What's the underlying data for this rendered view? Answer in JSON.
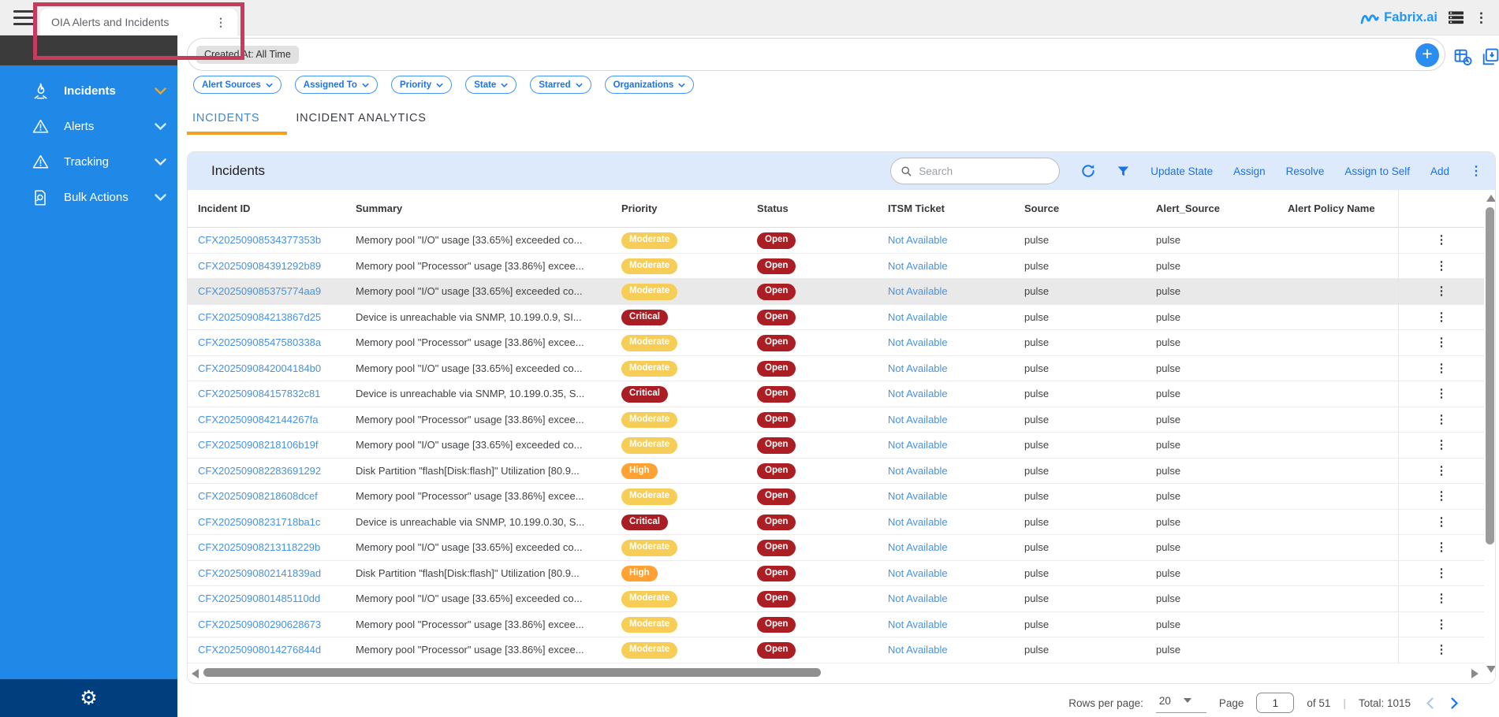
{
  "topbar": {
    "tab_title": "OIA Alerts and Incidents",
    "brand": "Fabrix.ai",
    "icons": [
      "hamburger-menu-icon",
      "kebab-menu-icon",
      "brand-wave-icon",
      "app-list-icon"
    ]
  },
  "sidebar": {
    "items": [
      {
        "label": "Incidents",
        "icon": "flame-icon",
        "active": true
      },
      {
        "label": "Alerts",
        "icon": "warning-triangle-icon",
        "active": false
      },
      {
        "label": "Tracking",
        "icon": "warning-triangle-icon",
        "active": false
      },
      {
        "label": "Bulk Actions",
        "icon": "document-search-icon",
        "active": false
      }
    ],
    "footer_icon": "gear-icon"
  },
  "filter_bar": {
    "created_at_chip": "Created At: All Time",
    "filter_chips": [
      "Alert Sources",
      "Assigned To",
      "Priority",
      "State",
      "Starred",
      "Organizations"
    ],
    "add_button": "+",
    "icons": [
      "table-clock-icon",
      "save-view-icon"
    ]
  },
  "tabs": [
    {
      "label": "INCIDENTS",
      "active": true
    },
    {
      "label": "INCIDENT ANALYTICS",
      "active": false
    }
  ],
  "toolbar": {
    "title": "Incidents",
    "search_placeholder": "Search",
    "icons": [
      "search-icon",
      "refresh-icon",
      "filter-funnel-icon",
      "kebab-menu-icon"
    ],
    "actions": [
      "Update State",
      "Assign",
      "Resolve",
      "Assign to Self",
      "Add"
    ]
  },
  "table": {
    "columns": [
      "Incident ID",
      "Summary",
      "Priority",
      "Status",
      "ITSM Ticket",
      "Source",
      "Alert_Source",
      "Alert Policy Name"
    ],
    "rows": [
      {
        "id": "CFX20250908534377353b",
        "summary": "Memory pool \"I/O\" usage [33.65%] exceeded co...",
        "priority": "Moderate",
        "status": "Open",
        "itsm_ticket": "Not Available",
        "source": "pulse",
        "alert_source": "pulse",
        "alert_policy_name": "",
        "highlighted": false
      },
      {
        "id": "CFX202509084391292b89",
        "summary": "Memory pool \"Processor\" usage [33.86%] excee...",
        "priority": "Moderate",
        "status": "Open",
        "itsm_ticket": "Not Available",
        "source": "pulse",
        "alert_source": "pulse",
        "alert_policy_name": "",
        "highlighted": false
      },
      {
        "id": "CFX202509085375774aa9",
        "summary": "Memory pool \"I/O\" usage [33.65%] exceeded co...",
        "priority": "Moderate",
        "status": "Open",
        "itsm_ticket": "Not Available",
        "source": "pulse",
        "alert_source": "pulse",
        "alert_policy_name": "",
        "highlighted": true
      },
      {
        "id": "CFX202509084213867d25",
        "summary": "Device is unreachable via SNMP, 10.199.0.9, SI...",
        "priority": "Critical",
        "status": "Open",
        "itsm_ticket": "Not Available",
        "source": "pulse",
        "alert_source": "pulse",
        "alert_policy_name": "",
        "highlighted": false
      },
      {
        "id": "CFX20250908547580338a",
        "summary": "Memory pool \"Processor\" usage [33.86%] excee...",
        "priority": "Moderate",
        "status": "Open",
        "itsm_ticket": "Not Available",
        "source": "pulse",
        "alert_source": "pulse",
        "alert_policy_name": "",
        "highlighted": false
      },
      {
        "id": "CFX2025090842004184b0",
        "summary": "Memory pool \"I/O\" usage [33.65%] exceeded co...",
        "priority": "Moderate",
        "status": "Open",
        "itsm_ticket": "Not Available",
        "source": "pulse",
        "alert_source": "pulse",
        "alert_policy_name": "",
        "highlighted": false
      },
      {
        "id": "CFX202509084157832c81",
        "summary": "Device is unreachable via SNMP, 10.199.0.35, S...",
        "priority": "Critical",
        "status": "Open",
        "itsm_ticket": "Not Available",
        "source": "pulse",
        "alert_source": "pulse",
        "alert_policy_name": "",
        "highlighted": false
      },
      {
        "id": "CFX2025090842144267fa",
        "summary": "Memory pool \"Processor\" usage [33.86%] excee...",
        "priority": "Moderate",
        "status": "Open",
        "itsm_ticket": "Not Available",
        "source": "pulse",
        "alert_source": "pulse",
        "alert_policy_name": "",
        "highlighted": false
      },
      {
        "id": "CFX20250908218106b19f",
        "summary": "Memory pool \"I/O\" usage [33.65%] exceeded co...",
        "priority": "Moderate",
        "status": "Open",
        "itsm_ticket": "Not Available",
        "source": "pulse",
        "alert_source": "pulse",
        "alert_policy_name": "",
        "highlighted": false
      },
      {
        "id": "CFX202509082283691292",
        "summary": "Disk Partition \"flash[Disk:flash]\" Utilization [80.9...",
        "priority": "High",
        "status": "Open",
        "itsm_ticket": "Not Available",
        "source": "pulse",
        "alert_source": "pulse",
        "alert_policy_name": "",
        "highlighted": false
      },
      {
        "id": "CFX20250908218608dcef",
        "summary": "Memory pool \"Processor\" usage [33.86%] excee...",
        "priority": "Moderate",
        "status": "Open",
        "itsm_ticket": "Not Available",
        "source": "pulse",
        "alert_source": "pulse",
        "alert_policy_name": "",
        "highlighted": false
      },
      {
        "id": "CFX20250908231718ba1c",
        "summary": "Device is unreachable via SNMP, 10.199.0.30, S...",
        "priority": "Critical",
        "status": "Open",
        "itsm_ticket": "Not Available",
        "source": "pulse",
        "alert_source": "pulse",
        "alert_policy_name": "",
        "highlighted": false
      },
      {
        "id": "CFX20250908213118229b",
        "summary": "Memory pool \"I/O\" usage [33.65%] exceeded co...",
        "priority": "Moderate",
        "status": "Open",
        "itsm_ticket": "Not Available",
        "source": "pulse",
        "alert_source": "pulse",
        "alert_policy_name": "",
        "highlighted": false
      },
      {
        "id": "CFX2025090802141839ad",
        "summary": "Disk Partition \"flash[Disk:flash]\" Utilization [80.9...",
        "priority": "High",
        "status": "Open",
        "itsm_ticket": "Not Available",
        "source": "pulse",
        "alert_source": "pulse",
        "alert_policy_name": "",
        "highlighted": false
      },
      {
        "id": "CFX2025090801485110dd",
        "summary": "Memory pool \"I/O\" usage [33.65%] exceeded co...",
        "priority": "Moderate",
        "status": "Open",
        "itsm_ticket": "Not Available",
        "source": "pulse",
        "alert_source": "pulse",
        "alert_policy_name": "",
        "highlighted": false
      },
      {
        "id": "CFX202509080290628673",
        "summary": "Memory pool \"Processor\" usage [33.86%] excee...",
        "priority": "Moderate",
        "status": "Open",
        "itsm_ticket": "Not Available",
        "source": "pulse",
        "alert_source": "pulse",
        "alert_policy_name": "",
        "highlighted": false
      },
      {
        "id": "CFX20250908014276844d",
        "summary": "Memory pool \"Processor\" usage [33.86%] excee...",
        "priority": "Moderate",
        "status": "Open",
        "itsm_ticket": "Not Available",
        "source": "pulse",
        "alert_source": "pulse",
        "alert_policy_name": "",
        "highlighted": false
      }
    ]
  },
  "pagination": {
    "rows_per_page_label": "Rows per page:",
    "rows_per_page_value": "20",
    "page_label": "Page",
    "page_value": "1",
    "page_count": "of 51",
    "separator": "|",
    "total": "Total: 1015"
  },
  "colors": {
    "sidebar_blue": "#2089e8",
    "sidebar_footer_navy": "#003e7e",
    "brand_blue": "#2196f3",
    "accent_blue": "#1a73e8",
    "tab_underline_orange": "#f59f1e",
    "toolbar_band": "#ddeafb",
    "badge_moderate": "#f5cd57",
    "badge_high": "#ffa133",
    "badge_critical": "#a81e24",
    "badge_open": "#ab1f24",
    "highlight_box_red": "#c83b5e",
    "row_highlight": "#e9e9e9"
  }
}
